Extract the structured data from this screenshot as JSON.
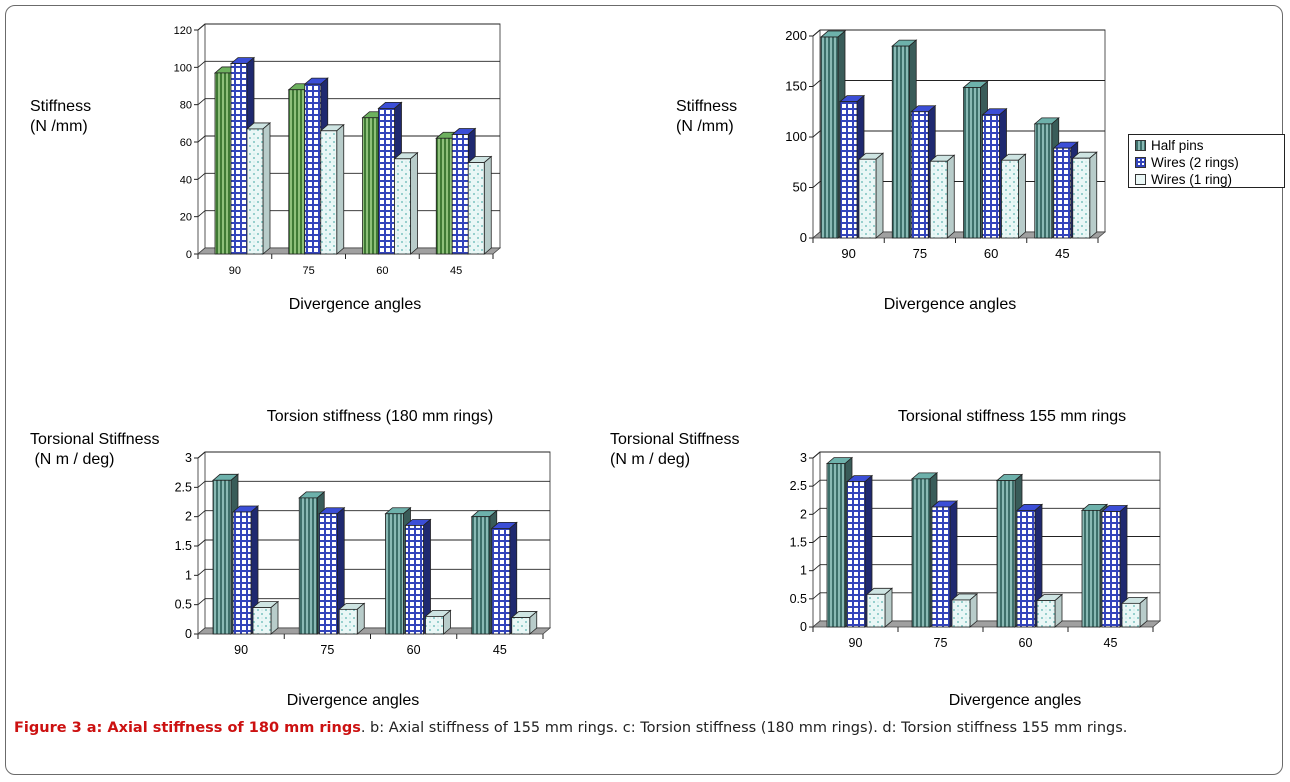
{
  "charts": [
    {
      "id": "a",
      "ylabel": "Stiffness\n(N /mm)",
      "xlabel": "Divergence angles",
      "title": "",
      "chart_data": {
        "type": "bar",
        "categories": [
          "90",
          "75",
          "60",
          "45"
        ],
        "series": [
          {
            "name": "",
            "values": [
              97,
              88,
              73,
              62
            ]
          },
          {
            "name": "",
            "values": [
              102,
              91,
              78,
              64
            ]
          },
          {
            "name": "",
            "values": [
              67,
              66,
              51,
              49
            ]
          }
        ],
        "ylim": [
          0,
          120
        ],
        "yticks": [
          "0",
          "20",
          "40",
          "60",
          "80",
          "100",
          "120"
        ],
        "grid": true
      }
    },
    {
      "id": "b",
      "ylabel": "Stiffness\n(N /mm)",
      "xlabel": "Divergence angles",
      "title": "",
      "chart_data": {
        "type": "bar",
        "categories": [
          "90",
          "75",
          "60",
          "45"
        ],
        "series": [
          {
            "name": "Half pins",
            "values": [
              199,
              190,
              149,
              113
            ]
          },
          {
            "name": "Wires (2 rings)",
            "values": [
              135,
              125,
              122,
              89
            ]
          },
          {
            "name": "Wires (1 ring)",
            "values": [
              78,
              76,
              77,
              79
            ]
          }
        ],
        "ylim": [
          0,
          200
        ],
        "yticks": [
          "0",
          "50",
          "100",
          "150",
          "200"
        ],
        "grid": true,
        "legend": "right"
      }
    },
    {
      "id": "c",
      "ylabel": "Torsional Stiffness\n (N m / deg)",
      "xlabel": "Divergence angles",
      "title": "Torsion stiffness (180 mm rings)",
      "chart_data": {
        "type": "bar",
        "categories": [
          "90",
          "75",
          "60",
          "45"
        ],
        "series": [
          {
            "name": "Half pins",
            "values": [
              2.62,
              2.32,
              2.05,
              2.0
            ]
          },
          {
            "name": "Wires (2 rings)",
            "values": [
              2.08,
              2.05,
              1.85,
              1.8
            ]
          },
          {
            "name": "Wires (1 ring)",
            "values": [
              0.45,
              0.42,
              0.3,
              0.28
            ]
          }
        ],
        "ylim": [
          0,
          3
        ],
        "yticks": [
          "0",
          "0.5",
          "1",
          "1.5",
          "2",
          "2.5",
          "3"
        ],
        "grid": true
      }
    },
    {
      "id": "d",
      "ylabel": "Torsional Stiffness\n(N m / deg)",
      "xlabel": "Divergence angles",
      "title": "Torsional stiffness 155 mm rings",
      "chart_data": {
        "type": "bar",
        "categories": [
          "90",
          "75",
          "60",
          "45"
        ],
        "series": [
          {
            "name": "Half pins",
            "values": [
              2.9,
              2.63,
              2.6,
              2.07
            ]
          },
          {
            "name": "Wires (2 rings)",
            "values": [
              2.58,
              2.13,
              2.07,
              2.05
            ]
          },
          {
            "name": "Wires (1 ring)",
            "values": [
              0.58,
              0.48,
              0.47,
              0.42
            ]
          }
        ],
        "ylim": [
          0,
          3
        ],
        "yticks": [
          "0",
          "0.5",
          "1",
          "1.5",
          "2",
          "2.5",
          "3"
        ],
        "grid": true
      }
    }
  ],
  "legend": {
    "items": [
      {
        "label": "Half pins",
        "color": "#5f9a95"
      },
      {
        "label": "Wires (2 rings)",
        "color": "#3344bb"
      },
      {
        "label": "Wires (1 ring)",
        "color": "#d9f0ee"
      }
    ]
  },
  "colors": {
    "series_a": [
      "#5f9a52",
      "#3344bb",
      "#d9f0ee"
    ],
    "series_bcd": [
      "#5f9a95",
      "#3344bb",
      "#d9f0ee"
    ],
    "floor": "#a0a0a0"
  },
  "caption": {
    "bold": "Figure 3 a: Axial stiffness of 180 mm rings",
    "rest": ". b: Axial stiffness of 155 mm rings. c: Torsion stiffness (180 mm rings). d: Torsion stiffness 155 mm rings."
  }
}
